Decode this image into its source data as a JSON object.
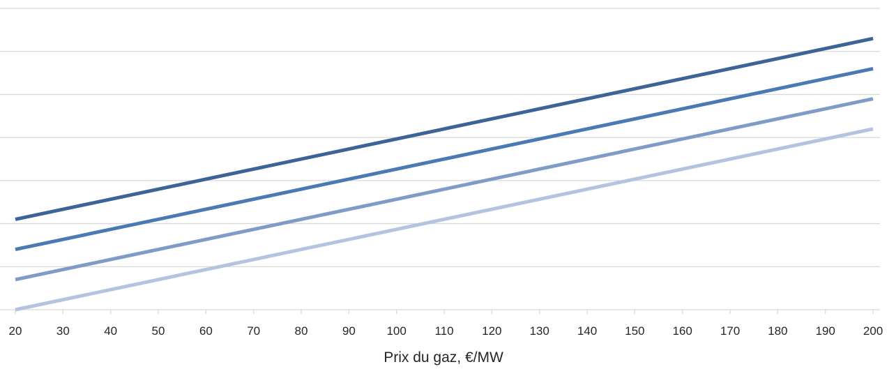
{
  "chart_data": {
    "type": "line",
    "xlabel": "Prix du gaz, €/MW",
    "ylabel": "",
    "x_ticks": [
      20,
      30,
      40,
      50,
      60,
      70,
      80,
      90,
      100,
      110,
      120,
      130,
      140,
      150,
      160,
      170,
      180,
      190,
      200
    ],
    "xlim": [
      20,
      200
    ],
    "ylim": [
      0,
      7
    ],
    "y_gridlines": [
      0,
      1,
      2,
      3,
      4,
      5,
      6,
      7
    ],
    "y_tick_labels_visible": false,
    "grid": true,
    "legend": "none",
    "series": [
      {
        "color": "#3d6496",
        "x": [
          20,
          200
        ],
        "y": [
          2.1,
          6.3
        ]
      },
      {
        "color": "#4a7ab3",
        "x": [
          20,
          200
        ],
        "y": [
          1.4,
          5.6
        ]
      },
      {
        "color": "#7e9cc6",
        "x": [
          20,
          200
        ],
        "y": [
          0.7,
          4.9
        ]
      },
      {
        "color": "#b4c4de",
        "x": [
          20,
          200
        ],
        "y": [
          0.0,
          4.2
        ]
      }
    ]
  }
}
